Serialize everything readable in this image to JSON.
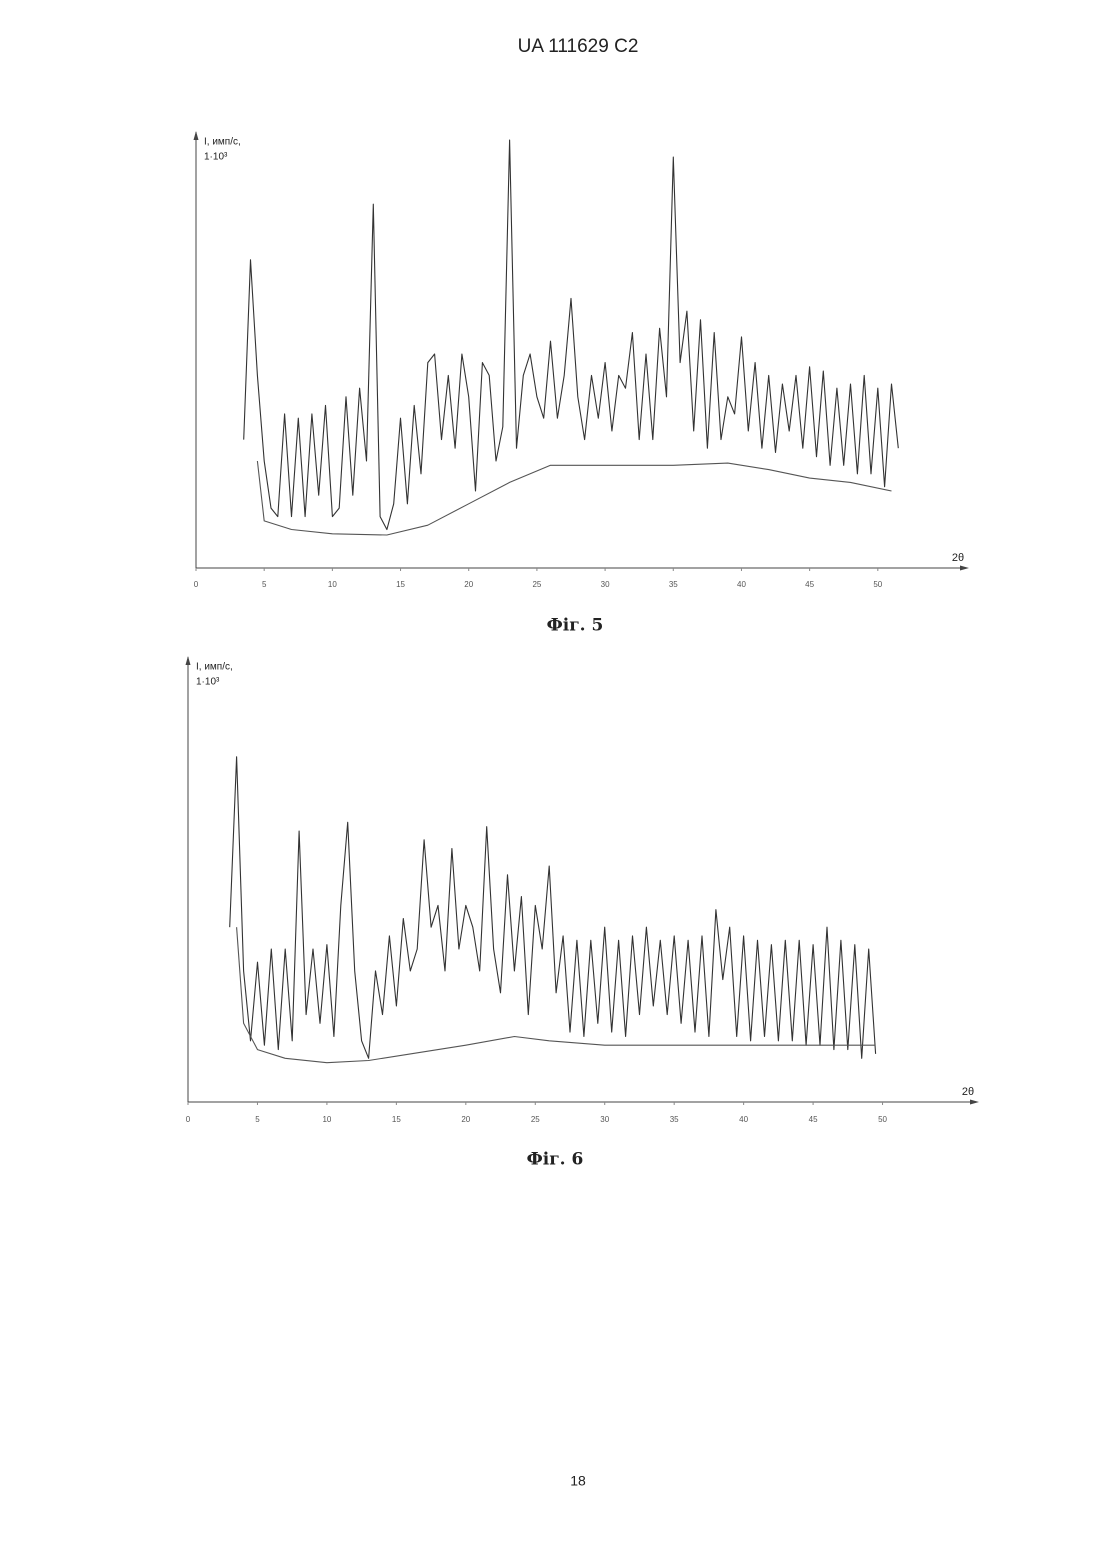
{
  "header": {
    "title": "UA 111629 C2"
  },
  "page_number": "18",
  "chart_data": [
    {
      "type": "line",
      "caption": "Фіг. 5",
      "x_label": "2θ",
      "y_label": [
        "I, имп/с,",
        "1·10³"
      ],
      "xlim": [
        0,
        55
      ],
      "xticks": [
        0,
        5,
        10,
        15,
        20,
        25,
        30,
        35,
        40,
        45,
        50
      ],
      "ylim": [
        0,
        100
      ],
      "series": [
        {
          "color": "#333333",
          "x": [
            3.5,
            4,
            4.5,
            5,
            5.5,
            6,
            6.5,
            7,
            7.5,
            8,
            8.5,
            9,
            9.5,
            10,
            10.5,
            11,
            11.5,
            12,
            12.5,
            13,
            13.5,
            14,
            14.5,
            15,
            15.5,
            16,
            16.5,
            17,
            17.5,
            18,
            18.5,
            19,
            19.5,
            20,
            20.5,
            21,
            21.5,
            22,
            22.5,
            23,
            23.5,
            24,
            24.5,
            25,
            25.5,
            26,
            26.5,
            27,
            27.5,
            28,
            28.5,
            29,
            29.5,
            30,
            30.5,
            31,
            31.5,
            32,
            32.5,
            33,
            33.5,
            34,
            34.5,
            35,
            35.5,
            36,
            36.5,
            37,
            37.5,
            38,
            38.5,
            39,
            39.5,
            40,
            40.5,
            41,
            41.5,
            42,
            42.5,
            43,
            43.5,
            44,
            44.5,
            45,
            45.5,
            46,
            46.5,
            47,
            47.5,
            48,
            48.5,
            49,
            49.5,
            50,
            50.5,
            51,
            51.5
          ],
          "values": [
            30,
            72,
            45,
            25,
            14,
            12,
            36,
            12,
            35,
            12,
            36,
            17,
            38,
            12,
            14,
            40,
            17,
            42,
            25,
            85,
            12,
            9,
            15,
            35,
            15,
            38,
            22,
            48,
            50,
            30,
            45,
            28,
            50,
            40,
            18,
            48,
            45,
            25,
            33,
            100,
            28,
            45,
            50,
            40,
            35,
            53,
            35,
            45,
            63,
            40,
            30,
            45,
            35,
            48,
            32,
            45,
            42,
            55,
            30,
            50,
            30,
            56,
            40,
            96,
            48,
            60,
            32,
            58,
            28,
            55,
            30,
            40,
            36,
            54,
            32,
            48,
            28,
            45,
            27,
            43,
            32,
            45,
            28,
            47,
            26,
            46,
            24,
            42,
            24,
            43,
            22,
            45,
            22,
            42,
            19,
            43,
            28
          ]
        },
        {
          "color": "#555555",
          "x": [
            4.5,
            5,
            7,
            10,
            14,
            17,
            20,
            23,
            26,
            30,
            35,
            39,
            42,
            45,
            48,
            51
          ],
          "values": [
            25,
            11,
            9,
            8,
            7.7,
            10,
            15,
            20,
            24,
            24,
            24,
            24.5,
            23,
            21,
            20,
            18
          ]
        }
      ]
    },
    {
      "type": "line",
      "caption": "Фіг. 6",
      "x_label": "2θ",
      "y_label": [
        "I, имп/с,",
        "1·10³"
      ],
      "xlim": [
        0,
        55
      ],
      "xticks": [
        0,
        5,
        10,
        15,
        20,
        25,
        30,
        35,
        40,
        45,
        50
      ],
      "ylim": [
        0,
        100
      ],
      "series": [
        {
          "color": "#333333",
          "x": [
            3,
            3.5,
            4,
            4.5,
            5,
            5.5,
            6,
            6.5,
            7,
            7.5,
            8,
            8.5,
            9,
            9.5,
            10,
            10.5,
            11,
            11.5,
            12,
            12.5,
            13,
            13.5,
            14,
            14.5,
            15,
            15.5,
            16,
            16.5,
            17,
            17.5,
            18,
            18.5,
            19,
            19.5,
            20,
            20.5,
            21,
            21.5,
            22,
            22.5,
            23,
            23.5,
            24,
            24.5,
            25,
            25.5,
            26,
            26.5,
            27,
            27.5,
            28,
            28.5,
            29,
            29.5,
            30,
            30.5,
            31,
            31.5,
            32,
            32.5,
            33,
            33.5,
            34,
            34.5,
            35,
            35.5,
            36,
            36.5,
            37,
            37.5,
            38,
            38.5,
            39,
            39.5,
            40,
            40.5,
            41,
            41.5,
            42,
            42.5,
            43,
            43.5,
            44,
            44.5,
            45,
            45.5,
            46,
            46.5,
            47,
            47.5,
            48,
            48.5,
            49,
            49.5
          ],
          "values": [
            40,
            79,
            30,
            14,
            32,
            13,
            35,
            12,
            35,
            14,
            62,
            20,
            35,
            18,
            36,
            15,
            45,
            64,
            30,
            14,
            10,
            30,
            20,
            38,
            22,
            42,
            30,
            35,
            60,
            40,
            45,
            30,
            58,
            35,
            45,
            40,
            30,
            63,
            35,
            25,
            52,
            30,
            47,
            20,
            45,
            35,
            54,
            25,
            38,
            16,
            37,
            15,
            37,
            18,
            40,
            16,
            37,
            15,
            38,
            20,
            40,
            22,
            37,
            20,
            38,
            18,
            37,
            16,
            38,
            15,
            44,
            28,
            40,
            15,
            38,
            14,
            37,
            15,
            36,
            14,
            37,
            14,
            37,
            13,
            36,
            13,
            40,
            12,
            37,
            12,
            36,
            10,
            35,
            11
          ]
        },
        {
          "color": "#555555",
          "x": [
            3.5,
            4,
            5,
            7,
            10,
            13,
            16,
            20,
            23.5,
            26,
            30,
            35,
            40,
            45,
            49.5
          ],
          "values": [
            40,
            18,
            12,
            10,
            9,
            9.5,
            11,
            13,
            15,
            14,
            13,
            13,
            13,
            13,
            13
          ]
        }
      ]
    }
  ]
}
